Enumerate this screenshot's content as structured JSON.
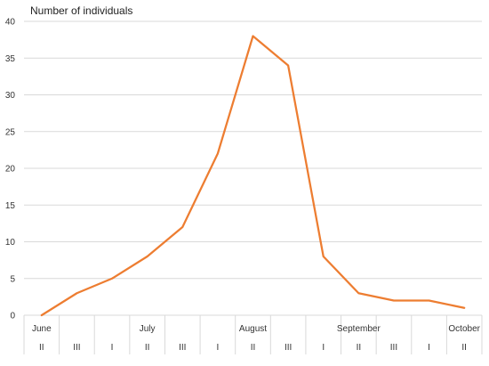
{
  "chart_data": {
    "type": "line",
    "title": "",
    "ylabel": "Number of individuals",
    "xlabel": "",
    "ylim": [
      0,
      40
    ],
    "yticks": [
      0,
      5,
      10,
      15,
      20,
      25,
      30,
      35,
      40
    ],
    "grid": true,
    "legend": "none",
    "line_color": "#ED7D31",
    "grid_color": "#D9D9D9",
    "categories": [
      "II",
      "III",
      "I",
      "II",
      "III",
      "I",
      "II",
      "III",
      "I",
      "II",
      "III",
      "I",
      "II"
    ],
    "groups": [
      {
        "label": "June",
        "index": 0
      },
      {
        "label": "July",
        "index": 3
      },
      {
        "label": "August",
        "index": 6
      },
      {
        "label": "September",
        "index": 9
      },
      {
        "label": "October",
        "index": 12
      }
    ],
    "series": [
      {
        "values": [
          0,
          3,
          5,
          8,
          12,
          22,
          38,
          34,
          8,
          3,
          2,
          2,
          1
        ]
      }
    ]
  }
}
